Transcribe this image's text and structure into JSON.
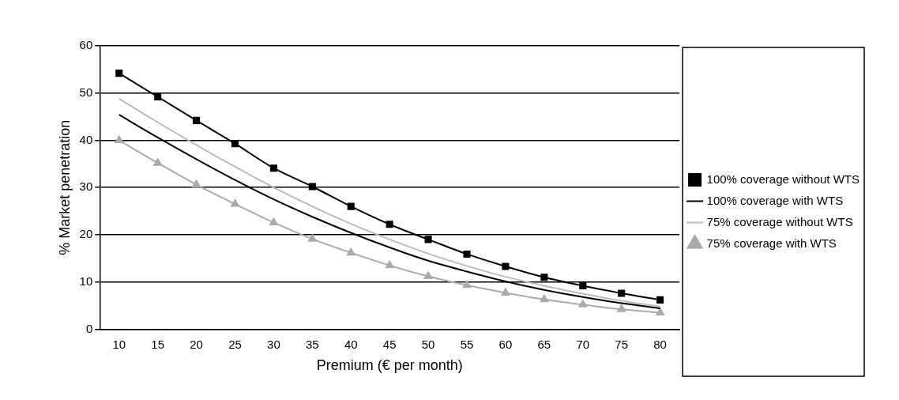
{
  "chart_data": {
    "type": "line",
    "xlabel": "Premium (€ per month)",
    "ylabel": "% Market penetration",
    "categories": [
      "10",
      "15",
      "20",
      "25",
      "30",
      "35",
      "40",
      "45",
      "50",
      "55",
      "60",
      "65",
      "70",
      "75",
      "80"
    ],
    "series": [
      {
        "name": "100% coverage without WTS",
        "color": "#000000",
        "marker": "square",
        "values": [
          54.2,
          49.2,
          44.2,
          39.3,
          34.1,
          30.2,
          26,
          22.2,
          19,
          15.9,
          13.3,
          11,
          9.2,
          7.6,
          6.2
        ]
      },
      {
        "name": "100% coverage with WTS",
        "color": "#000000",
        "marker": "none",
        "values": [
          45.4,
          40.6,
          36,
          31.6,
          27.5,
          23.8,
          20.4,
          17.3,
          14.5,
          12.2,
          10.1,
          8.3,
          6.8,
          5.5,
          4.4
        ]
      },
      {
        "name": "75% coverage without WTS",
        "color": "#bbbbbb",
        "marker": "none",
        "values": [
          48.8,
          43.8,
          39,
          34.4,
          30,
          26,
          22.3,
          19,
          16,
          13.4,
          11.1,
          9.2,
          7.5,
          6,
          4.8
        ]
      },
      {
        "name": "75% coverage with WTS",
        "color": "#aaaaaa",
        "marker": "triangle",
        "values": [
          40,
          35.2,
          30.6,
          26.5,
          22.6,
          19.1,
          16.2,
          13.5,
          11.2,
          9.3,
          7.7,
          6.3,
          5.2,
          4.2,
          3.5
        ]
      }
    ],
    "ylim": [
      0,
      60
    ],
    "yticks": [
      0,
      10,
      20,
      30,
      40,
      50,
      60
    ],
    "grid": "y",
    "legend": "right",
    "line_style": "solid"
  }
}
